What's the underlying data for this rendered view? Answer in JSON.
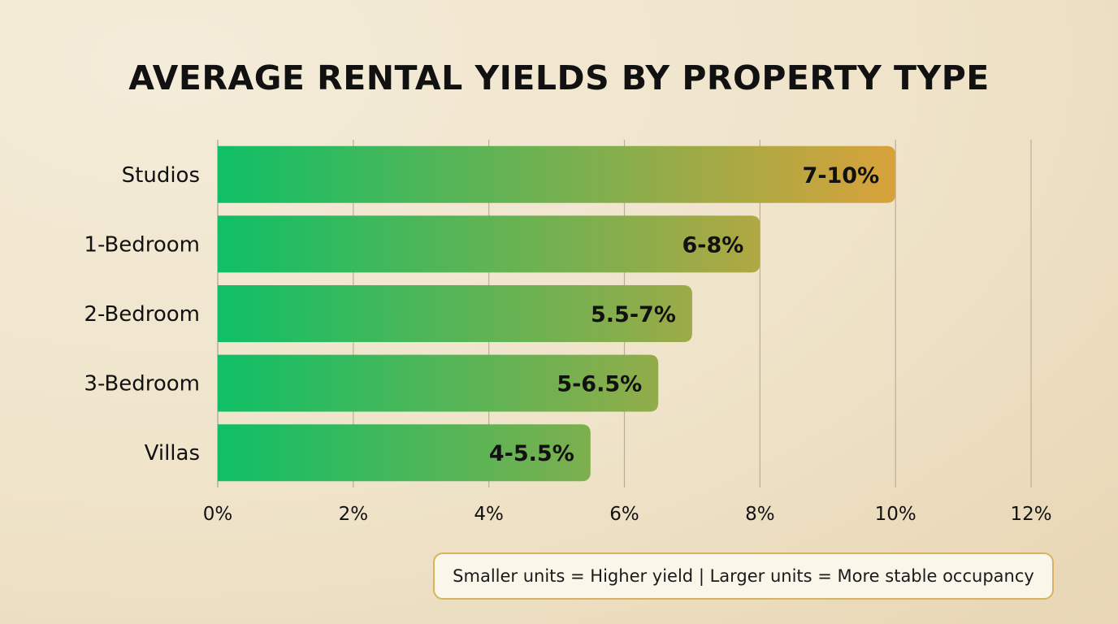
{
  "title": "AVERAGE RENTAL YIELDS BY PROPERTY TYPE",
  "footnote": "Smaller units = Higher yield | Larger units = More stable occupancy",
  "colors": {
    "bar_start": "#0fbf66",
    "bar_end": "#d9a23a",
    "grid": "#b9ae98",
    "text": "#111111"
  },
  "chart_data": {
    "type": "bar",
    "orientation": "horizontal",
    "title": "AVERAGE RENTAL YIELDS BY PROPERTY TYPE",
    "categories": [
      "Studios",
      "1-Bedroom",
      "2-Bedroom",
      "3-Bedroom",
      "Villas"
    ],
    "values": [
      10,
      8,
      7,
      6.5,
      5.5
    ],
    "data_labels": [
      "7-10%",
      "6-8%",
      "5.5-7%",
      "5-6.5%",
      "4-5.5%"
    ],
    "xlim": [
      0,
      12
    ],
    "xticks": [
      "0%",
      "2%",
      "4%",
      "6%",
      "8%",
      "10%",
      "12%"
    ],
    "grid": true,
    "legend": "none"
  }
}
